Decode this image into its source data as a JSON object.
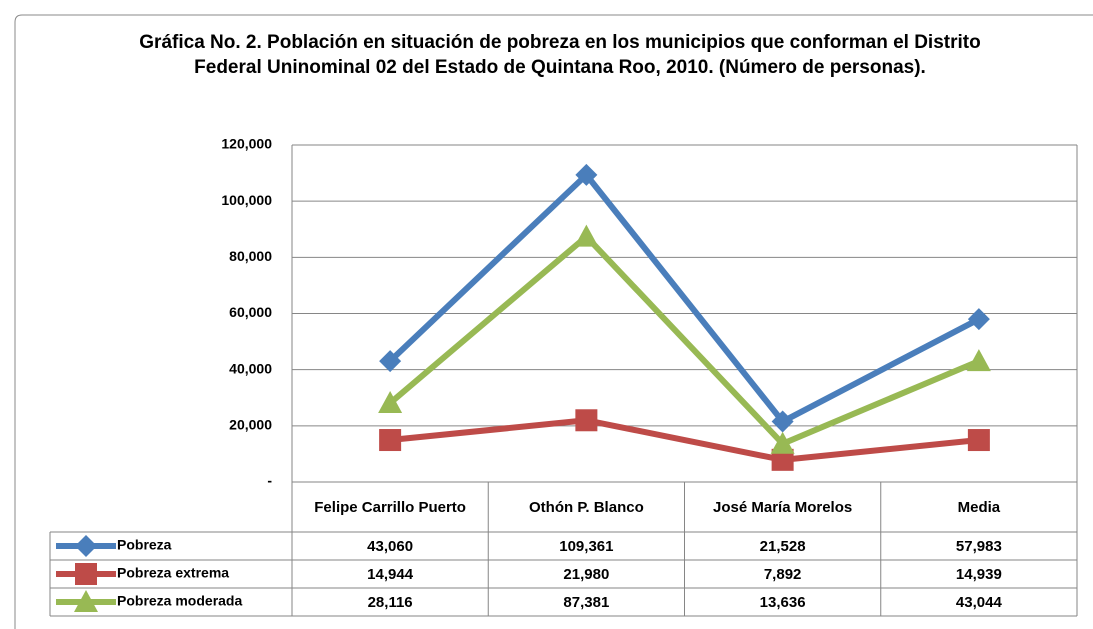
{
  "chart_data": {
    "type": "line",
    "title": "Gráfica No. 2. Población en situación de pobreza en los municipios que conforman el Distrito Federal Uninominal 02 del Estado de Quintana Roo, 2010. (Número de personas).",
    "categories": [
      "Felipe Carrillo Puerto",
      "Othón P. Blanco",
      "José María Morelos",
      "Media"
    ],
    "series": [
      {
        "name": "Pobreza",
        "color": "#4a7ebb",
        "marker": "diamond",
        "values": [
          43060,
          109361,
          21528,
          57983
        ],
        "value_labels": [
          "43,060",
          "109,361",
          "21,528",
          "57,983"
        ]
      },
      {
        "name": "Pobreza extrema",
        "color": "#be4b48",
        "marker": "square",
        "values": [
          14944,
          21980,
          7892,
          14939
        ],
        "value_labels": [
          "14,944",
          "21,980",
          "7,892",
          "14,939"
        ]
      },
      {
        "name": "Pobreza moderada",
        "color": "#98b954",
        "marker": "triangle",
        "values": [
          28116,
          87381,
          13636,
          43044
        ],
        "value_labels": [
          "28,116",
          "87,381",
          "13,636",
          "43,044"
        ]
      }
    ],
    "ylim": [
      0,
      120000
    ],
    "yticks": [
      {
        "value": 0,
        "label": "-"
      },
      {
        "value": 20000,
        "label": "20,000"
      },
      {
        "value": 40000,
        "label": "40,000"
      },
      {
        "value": 60000,
        "label": "60,000"
      },
      {
        "value": 80000,
        "label": "80,000"
      },
      {
        "value": 100000,
        "label": "100,000"
      },
      {
        "value": 120000,
        "label": "120,000"
      }
    ],
    "grid": true
  }
}
